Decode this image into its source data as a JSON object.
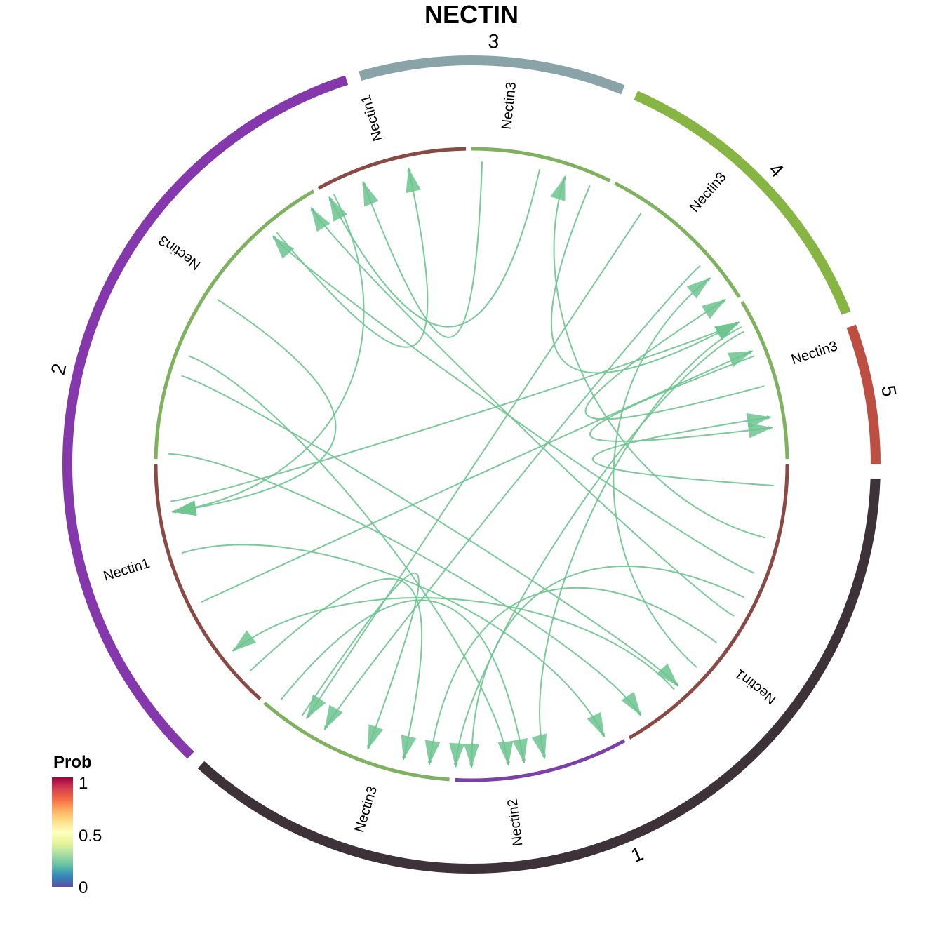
{
  "title": "NECTIN",
  "groups": [
    {
      "label": "1",
      "color": "#3d3238",
      "start": 92,
      "end": 222
    },
    {
      "label": "2",
      "color": "#8438ab",
      "start": 224,
      "end": 342
    },
    {
      "label": "3",
      "color": "#89a3a8",
      "start": 344,
      "end": 22
    },
    {
      "label": "4",
      "color": "#86b543",
      "start": 24,
      "end": 68
    },
    {
      "label": "5",
      "color": "#bd4f42",
      "start": 70,
      "end": 90
    }
  ],
  "segments": [
    {
      "label": "Nectin2",
      "color": "#7d3fa9",
      "start": 151,
      "end": 183
    },
    {
      "label": "Nectin3",
      "color": "#7fb25f",
      "start": 184,
      "end": 221
    },
    {
      "label": "Nectin1",
      "color": "#8a4a44",
      "start": 222,
      "end": 270
    },
    {
      "label": "Nectin3",
      "color": "#7fb25f",
      "start": 271,
      "end": 330
    },
    {
      "label": "Nectin1",
      "color": "#8a4a44",
      "start": 331,
      "end": 359
    },
    {
      "label": "Nectin3",
      "color": "#7fb25f",
      "start": 0,
      "end": 26
    },
    {
      "label": "Nectin3",
      "color": "#7fb25f",
      "start": 27,
      "end": 58
    },
    {
      "label": "Nectin3",
      "color": "#7fb25f",
      "start": 59,
      "end": 89
    },
    {
      "label": "Nectin1",
      "color": "#8a4a44",
      "start": 90,
      "end": 150
    }
  ],
  "segment_label_angles": [
    173,
    197,
    253,
    306,
    344,
    6,
    41,
    72,
    128
  ],
  "links": [
    {
      "from": 320,
      "to": 348
    },
    {
      "from": 303,
      "to": 261
    },
    {
      "from": 333,
      "to": 261
    },
    {
      "from": 291,
      "to": 173
    },
    {
      "from": 13,
      "to": 332
    },
    {
      "from": 2,
      "to": 339
    },
    {
      "from": 23,
      "to": 62
    },
    {
      "from": 34,
      "to": 213
    },
    {
      "from": 49,
      "to": 209
    },
    {
      "from": 63,
      "to": 166
    },
    {
      "from": 64,
      "to": 183
    },
    {
      "from": 75,
      "to": 57
    },
    {
      "from": 69,
      "to": 83
    },
    {
      "from": 94,
      "to": 81
    },
    {
      "from": 104,
      "to": 18
    },
    {
      "from": 111,
      "to": 319
    },
    {
      "from": 120,
      "to": 328
    },
    {
      "from": 132,
      "to": 52
    },
    {
      "from": 253,
      "to": 154
    },
    {
      "from": 263,
      "to": 62
    },
    {
      "from": 272,
      "to": 146
    },
    {
      "from": 287,
      "to": 137
    },
    {
      "from": 243,
      "to": 68
    },
    {
      "from": 227,
      "to": 193
    },
    {
      "from": 214,
      "to": 200
    },
    {
      "from": 219,
      "to": 170
    },
    {
      "from": 138,
      "to": 232
    },
    {
      "from": 126,
      "to": 188
    },
    {
      "from": 116,
      "to": 180
    }
  ],
  "link_color": "#6cc48e",
  "legend": {
    "title": "Prob",
    "ticks": [
      "1",
      "0.5",
      "0"
    ],
    "colors": [
      "#5e4fa2",
      "#3288bd",
      "#66c2a5",
      "#abdda4",
      "#e6f598",
      "#ffffbf",
      "#fee08b",
      "#fdae61",
      "#f46d43",
      "#d53e4f",
      "#9e0142"
    ]
  }
}
